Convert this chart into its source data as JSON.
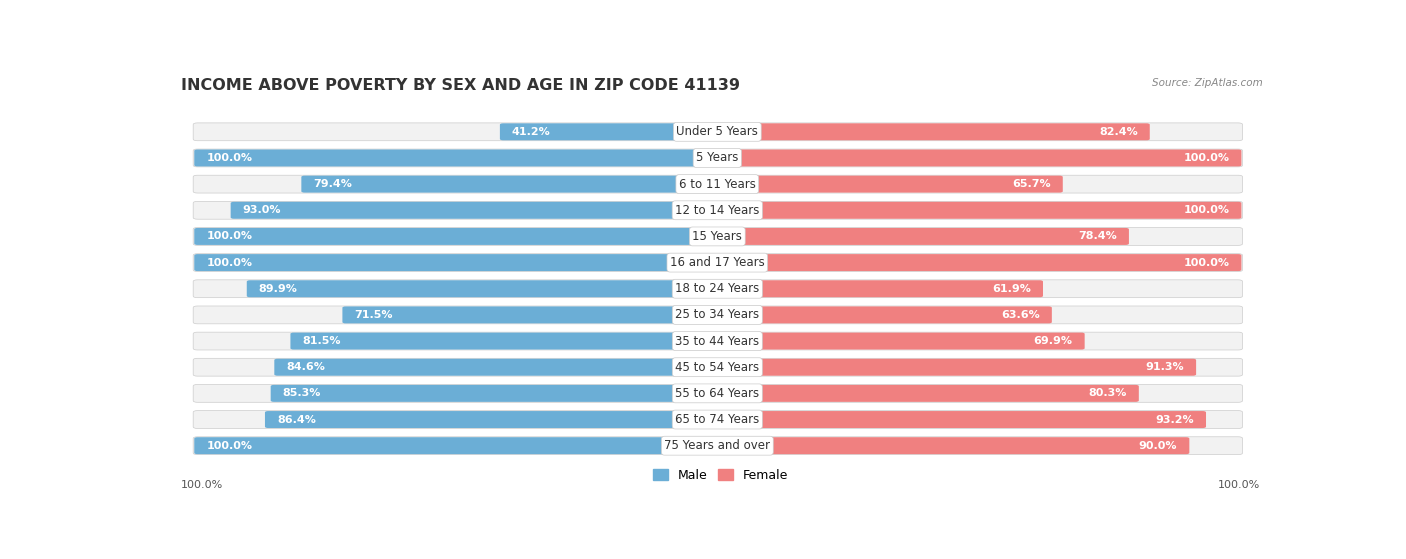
{
  "title": "INCOME ABOVE POVERTY BY SEX AND AGE IN ZIP CODE 41139",
  "source": "Source: ZipAtlas.com",
  "categories": [
    "Under 5 Years",
    "5 Years",
    "6 to 11 Years",
    "12 to 14 Years",
    "15 Years",
    "16 and 17 Years",
    "18 to 24 Years",
    "25 to 34 Years",
    "35 to 44 Years",
    "45 to 54 Years",
    "55 to 64 Years",
    "65 to 74 Years",
    "75 Years and over"
  ],
  "male_values": [
    41.2,
    100.0,
    79.4,
    93.0,
    100.0,
    100.0,
    89.9,
    71.5,
    81.5,
    84.6,
    85.3,
    86.4,
    100.0
  ],
  "female_values": [
    82.4,
    100.0,
    65.7,
    100.0,
    78.4,
    100.0,
    61.9,
    63.6,
    69.9,
    91.3,
    80.3,
    93.2,
    90.0
  ],
  "male_color": "#6baed6",
  "female_color": "#f08080",
  "bar_bg_color": "#e8e8e8",
  "row_bg_color": "#f0f0f0",
  "title_fontsize": 11.5,
  "label_fontsize": 8.5,
  "value_fontsize": 8,
  "legend_fontsize": 9,
  "bottom_value_left": "100.0%",
  "bottom_value_right": "100.0%"
}
